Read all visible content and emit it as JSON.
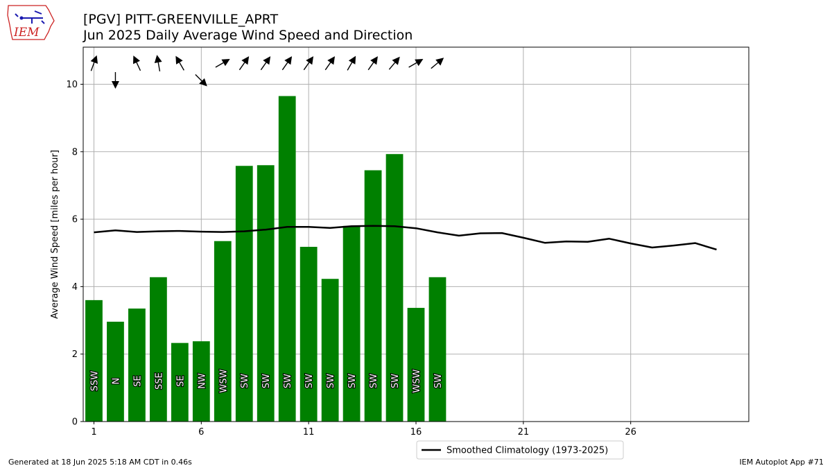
{
  "header": {
    "title_line1": "[PGV] PITT-GREENVILLE_APRT",
    "title_line2": "Jun 2025 Daily Average Wind Speed and Direction",
    "logo_text": "IEM"
  },
  "footer": {
    "left": "Generated at 18 Jun 2025 5:18 AM CDT in 0.46s",
    "right": "IEM Autoplot App #71"
  },
  "colors": {
    "bar": "#008000",
    "climatology": "#000000",
    "grid": "#b0b0b0",
    "arrow": "#000000",
    "logo_red": "#cc2222",
    "logo_blue": "#1a1ab0"
  },
  "chart_data": {
    "type": "bar",
    "title": "[PGV] PITT-GREENVILLE_APRT\nJun 2025 Daily Average Wind Speed and Direction",
    "xlabel": "",
    "ylabel": "Average Wind Speed [miles per hour]",
    "xlim": [
      0.5,
      31.5
    ],
    "ylim": [
      0,
      11.1
    ],
    "xticks": [
      1,
      6,
      11,
      16,
      21,
      26
    ],
    "yticks": [
      0,
      2,
      4,
      6,
      8,
      10
    ],
    "grid": true,
    "legend_position": "bottom-center",
    "bars": {
      "days": [
        1,
        2,
        3,
        4,
        5,
        6,
        7,
        8,
        9,
        10,
        11,
        12,
        13,
        14,
        15,
        16,
        17
      ],
      "values": [
        3.6,
        2.96,
        3.35,
        4.28,
        2.33,
        2.38,
        5.35,
        7.58,
        7.6,
        9.65,
        5.18,
        4.23,
        5.8,
        7.45,
        7.93,
        3.37,
        4.28
      ],
      "directions": [
        "SSW",
        "N",
        "SE",
        "SSE",
        "SE",
        "NW",
        "WSW",
        "SW",
        "SW",
        "SW",
        "SW",
        "SW",
        "SW",
        "SW",
        "SW",
        "WSW",
        "SW"
      ]
    },
    "series": [
      {
        "name": "Smoothed Climatology (1973-2025)",
        "x": [
          1,
          2,
          3,
          4,
          5,
          6,
          7,
          8,
          9,
          10,
          11,
          12,
          13,
          14,
          15,
          16,
          17,
          18,
          19,
          20,
          21,
          22,
          23,
          24,
          25,
          26,
          27,
          28,
          29,
          30
        ],
        "values": [
          5.61,
          5.67,
          5.62,
          5.64,
          5.65,
          5.63,
          5.62,
          5.64,
          5.69,
          5.77,
          5.77,
          5.74,
          5.79,
          5.8,
          5.79,
          5.73,
          5.61,
          5.51,
          5.58,
          5.59,
          5.45,
          5.3,
          5.34,
          5.33,
          5.42,
          5.28,
          5.16,
          5.22,
          5.29,
          5.1
        ]
      }
    ],
    "arrows": {
      "days": [
        1,
        2,
        3,
        4,
        5,
        6,
        7,
        8,
        9,
        10,
        11,
        12,
        13,
        14,
        15,
        16,
        17
      ],
      "toward_degrees": [
        20,
        180,
        335,
        350,
        330,
        135,
        60,
        35,
        35,
        35,
        35,
        35,
        30,
        35,
        40,
        60,
        50
      ],
      "row": [
        "upper",
        "lower",
        "upper",
        "upper",
        "upper",
        "lower",
        "upper",
        "upper",
        "upper",
        "upper",
        "upper",
        "upper",
        "upper",
        "upper",
        "upper",
        "upper",
        "upper"
      ]
    }
  }
}
